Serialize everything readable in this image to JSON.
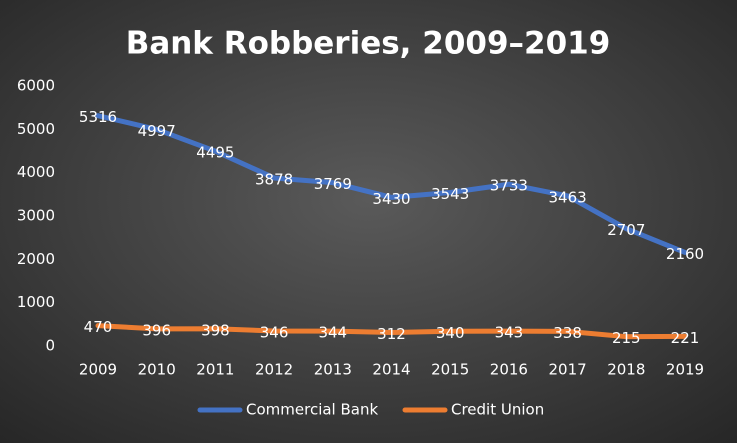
{
  "chart_data": {
    "type": "line",
    "title": "Bank Robberies, 2009–2019",
    "categories": [
      "2009",
      "2010",
      "2011",
      "2012",
      "2013",
      "2014",
      "2015",
      "2016",
      "2017",
      "2018",
      "2019"
    ],
    "series": [
      {
        "name": "Commercial Bank",
        "color": "#4472c4",
        "values": [
          5316,
          4997,
          4495,
          3878,
          3769,
          3430,
          3543,
          3733,
          3463,
          2707,
          2160
        ]
      },
      {
        "name": "Credit Union",
        "color": "#ed7d31",
        "values": [
          470,
          396,
          398,
          346,
          344,
          312,
          340,
          343,
          338,
          215,
          221
        ]
      }
    ],
    "ylim": [
      0,
      6000
    ],
    "yticks": [
      0,
      1000,
      2000,
      3000,
      4000,
      5000,
      6000
    ],
    "grid": false,
    "legend": "bottom"
  }
}
